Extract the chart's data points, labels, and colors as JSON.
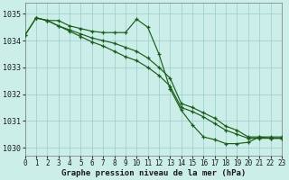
{
  "title": "Graphe pression niveau de la mer (hPa)",
  "bg_color": "#cceee8",
  "grid_color": "#99cccc",
  "line_color": "#1a5c1a",
  "xlim": [
    0,
    23
  ],
  "ylim": [
    1029.7,
    1035.4
  ],
  "yticks": [
    1030,
    1031,
    1032,
    1033,
    1034,
    1035
  ],
  "xticks": [
    0,
    1,
    2,
    3,
    4,
    5,
    6,
    7,
    8,
    9,
    10,
    11,
    12,
    13,
    14,
    15,
    16,
    17,
    18,
    19,
    20,
    21,
    22,
    23
  ],
  "s1_x": [
    0,
    1,
    2,
    3,
    4,
    5,
    6,
    7,
    8,
    9,
    10,
    11,
    12,
    13,
    14,
    15,
    16,
    17,
    18,
    19,
    20,
    21,
    22,
    23
  ],
  "s1_y": [
    1034.2,
    1034.85,
    1034.75,
    1034.75,
    1034.55,
    1034.45,
    1034.35,
    1034.3,
    1034.3,
    1034.3,
    1034.8,
    1034.5,
    1033.5,
    1032.2,
    1031.4,
    1030.85,
    1030.4,
    1030.3,
    1030.15,
    1030.15,
    1030.2,
    1030.4,
    1030.35,
    1030.35
  ],
  "s2_x": [
    0,
    1,
    2,
    3,
    4,
    5,
    6,
    7,
    8,
    9,
    10,
    11,
    12,
    13,
    14,
    15,
    16,
    17,
    18,
    19,
    20,
    21,
    22,
    23
  ],
  "s2_y": [
    1034.2,
    1034.85,
    1034.75,
    1034.55,
    1034.4,
    1034.25,
    1034.1,
    1034.0,
    1033.9,
    1033.75,
    1033.6,
    1033.35,
    1033.0,
    1032.6,
    1031.65,
    1031.5,
    1031.3,
    1031.1,
    1030.8,
    1030.65,
    1030.4,
    1030.4,
    1030.4,
    1030.4
  ],
  "s3_x": [
    1,
    2,
    3,
    4,
    5,
    6,
    7,
    8,
    9,
    10,
    11,
    12,
    13,
    14,
    15,
    16,
    17,
    18,
    19,
    20,
    21,
    22,
    23
  ],
  "s3_y": [
    1034.85,
    1034.75,
    1034.55,
    1034.35,
    1034.15,
    1033.95,
    1033.8,
    1033.6,
    1033.4,
    1033.25,
    1033.0,
    1032.7,
    1032.3,
    1031.5,
    1031.35,
    1031.15,
    1030.9,
    1030.65,
    1030.5,
    1030.35,
    1030.35,
    1030.35,
    1030.35
  ],
  "tick_fontsize": 5.5,
  "xlabel_fontsize": 6.5
}
